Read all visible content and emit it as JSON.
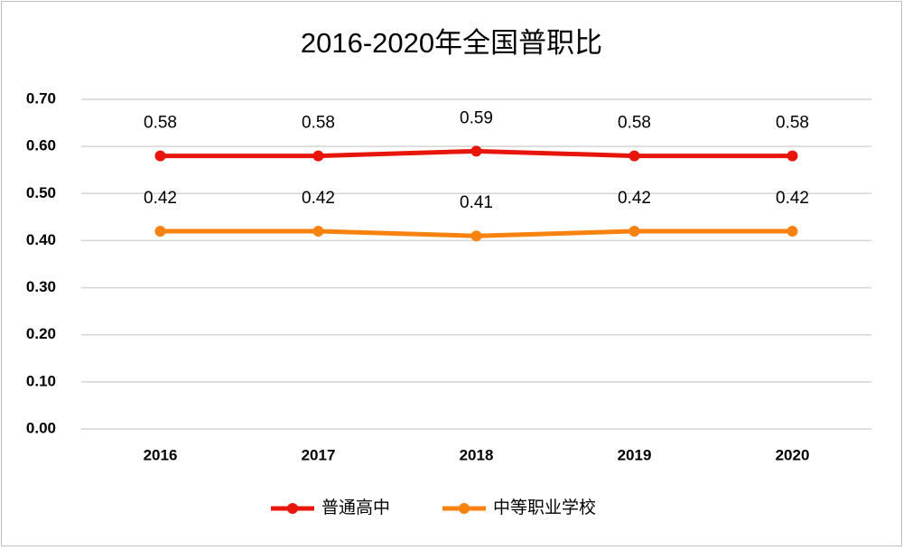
{
  "chart_data": {
    "type": "line",
    "title": "2016-2020年全国普职比",
    "categories": [
      "2016",
      "2017",
      "2018",
      "2019",
      "2020"
    ],
    "series": [
      {
        "name": "普通高中",
        "color": "#e8150c",
        "values": [
          0.58,
          0.58,
          0.59,
          0.58,
          0.58
        ]
      },
      {
        "name": "中等职业学校",
        "color": "#f7820f",
        "values": [
          0.42,
          0.42,
          0.41,
          0.42,
          0.42
        ]
      }
    ],
    "ylim": [
      0,
      0.7
    ],
    "yticks": [
      {
        "value": 0,
        "label": "0.00"
      },
      {
        "value": 0.1,
        "label": "0.10"
      },
      {
        "value": 0.2,
        "label": "0.20"
      },
      {
        "value": 0.3,
        "label": "0.30"
      },
      {
        "value": 0.4,
        "label": "0.40"
      },
      {
        "value": 0.5,
        "label": "0.50"
      },
      {
        "value": 0.6,
        "label": "0.60"
      },
      {
        "value": 0.7,
        "label": "0.70"
      }
    ],
    "grid": true,
    "legend": "bottom"
  }
}
